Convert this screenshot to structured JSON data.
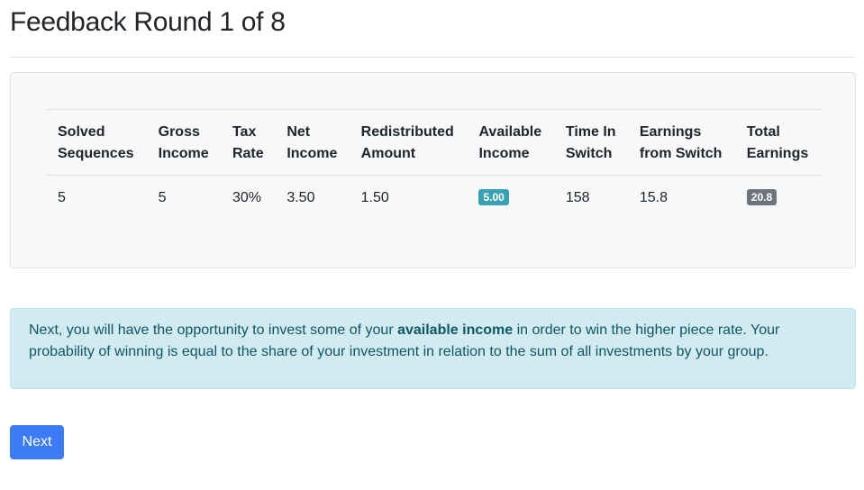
{
  "page": {
    "title": "Feedback Round 1 of 8"
  },
  "table": {
    "headers": [
      [
        "Solved",
        "Sequences"
      ],
      [
        "Gross",
        "Income"
      ],
      [
        "Tax",
        "Rate"
      ],
      [
        "Net",
        "Income"
      ],
      [
        "Redistributed",
        "Amount"
      ],
      [
        "Available",
        "Income"
      ],
      [
        "Time In",
        "Switch"
      ],
      [
        "Earnings",
        "from Switch"
      ],
      [
        "Total",
        "Earnings"
      ]
    ],
    "row": {
      "solved_sequences": "5",
      "gross_income": "5",
      "tax_rate": "30%",
      "net_income": "3.50",
      "redistributed_amount": "1.50",
      "available_income": "5.00",
      "time_in_switch": "158",
      "earnings_from_switch": "15.8",
      "total_earnings": "20.8"
    }
  },
  "alert": {
    "text_before": "Next, you will have the opportunity to invest some of your ",
    "text_bold": "available income",
    "text_after": " in order to win the higher piece rate. Your probability of winning is equal to the share of your investment in relation to the sum of all investments by your group."
  },
  "buttons": {
    "next_label": "Next"
  },
  "colors": {
    "primary": "#3d7cf5",
    "info_badge": "#3aa3b3",
    "secondary_badge": "#6c757d",
    "alert_background": "#d1ebf0",
    "alert_text": "#0f5666"
  }
}
